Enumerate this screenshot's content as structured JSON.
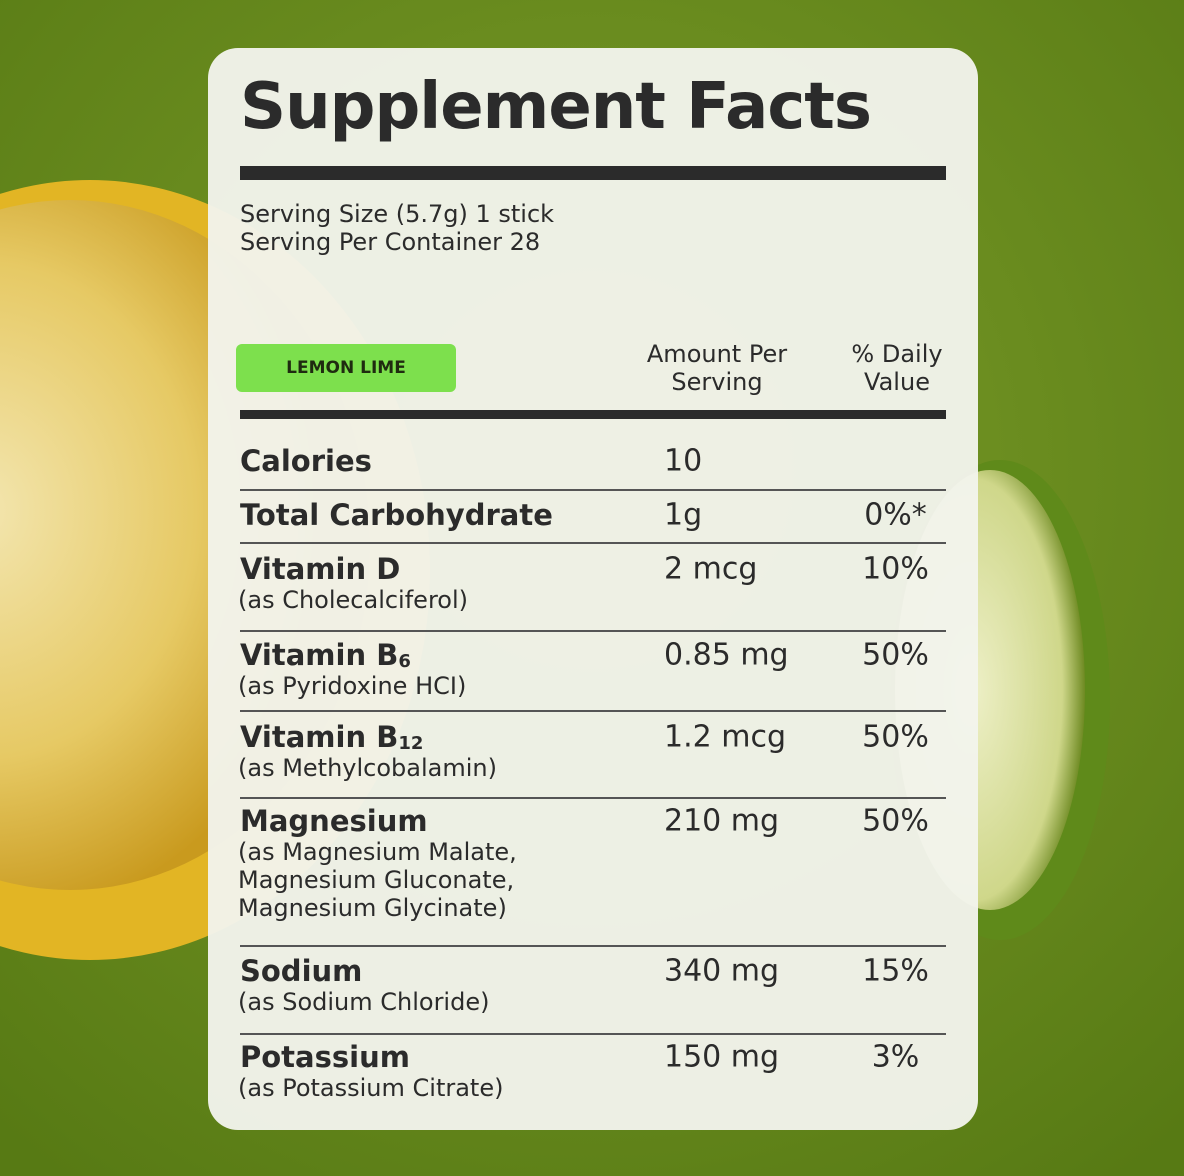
{
  "header": {
    "title": "Supplement Facts",
    "serving_size": "Serving Size (5.7g) 1 stick",
    "servings_per_container": "Serving Per Container 28"
  },
  "flavor": "LEMON LIME",
  "columns": {
    "amount": [
      "Amount Per",
      "Serving"
    ],
    "daily_value": [
      "% Daily",
      "Value"
    ]
  },
  "rows": [
    {
      "name": "Calories",
      "amount": "10"
    },
    {
      "name": "Total Carbohydrate",
      "amount": "1g",
      "daily_value": "0%*"
    },
    {
      "name": "Vitamin D",
      "note": [
        "(as Cholecalciferol)"
      ],
      "amount": "2 mcg",
      "daily_value": "10%"
    },
    {
      "name": "Vitamin B",
      "sub": "6",
      "note": [
        "(as Pyridoxine HCI)"
      ],
      "amount": "0.85 mg",
      "daily_value": "50%"
    },
    {
      "name": "Vitamin B",
      "sub": "12",
      "note": [
        "(as Methylcobalamin)"
      ],
      "amount": "1.2 mcg",
      "daily_value": "50%"
    },
    {
      "name": "Magnesium",
      "note": [
        "(as Magnesium Malate,",
        "Magnesium Gluconate,",
        "Magnesium Glycinate)"
      ],
      "amount": "210 mg",
      "daily_value": "50%"
    },
    {
      "name": "Sodium",
      "note": [
        "(as Sodium Chloride)"
      ],
      "amount": "340 mg",
      "daily_value": "15%"
    },
    {
      "name": "Potassium",
      "note": [
        "(as Potassium Citrate)"
      ],
      "amount": "150 mg",
      "daily_value": "3%"
    }
  ]
}
